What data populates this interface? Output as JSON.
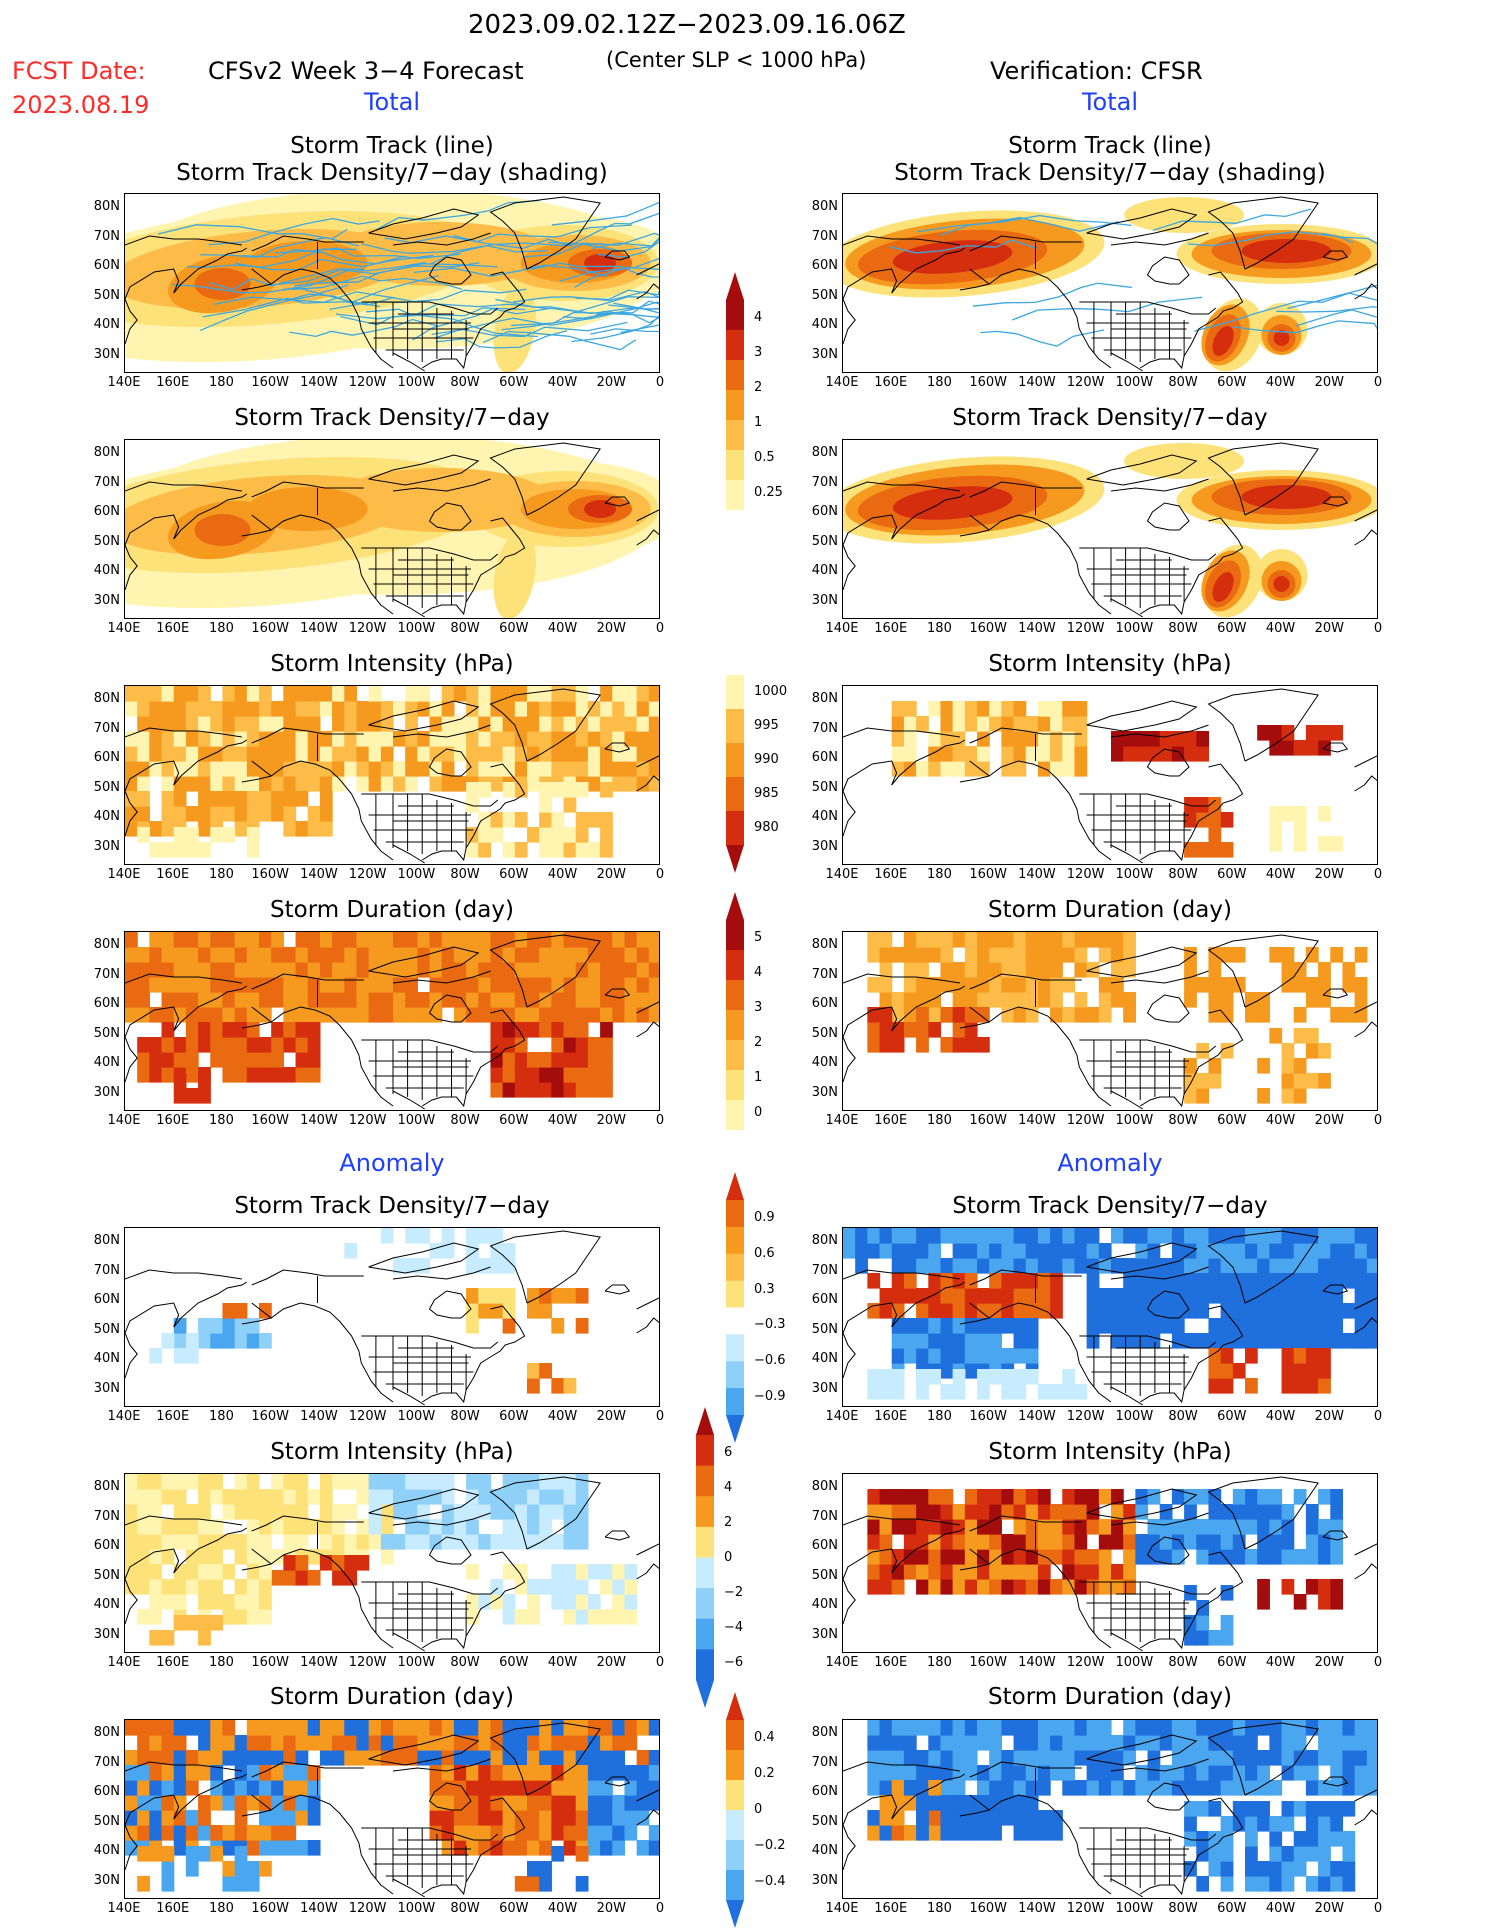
{
  "header": {
    "period": "2023.09.02.12Z−2023.09.16.06Z",
    "fcst_label": "FCST Date:",
    "fcst_date": "2023.08.19",
    "model_title": "CFSv2 Week 3−4 Forecast",
    "criterion": "(Center SLP < 1000 hPa)",
    "verification": "Verification: CFSR",
    "total_left": "Total",
    "total_right": "Total",
    "anomaly_left": "Anomaly",
    "anomaly_right": "Anomaly"
  },
  "axes": {
    "lat_labels": [
      "80N",
      "70N",
      "60N",
      "50N",
      "40N",
      "30N"
    ],
    "lon_labels": [
      "140E",
      "160E",
      "180",
      "160W",
      "140W",
      "120W",
      "100W",
      "80W",
      "60W",
      "40W",
      "20W",
      "0"
    ]
  },
  "panel_titles": {
    "track_line": "Storm Track (line)",
    "track_density_shading": "Storm Track Density/7−day (shading)",
    "track_density": "Storm Track Density/7−day",
    "intensity": "Storm Intensity (hPa)",
    "duration": "Storm Duration (day)"
  },
  "colorbars": {
    "density_total": [
      "4",
      "3",
      "2",
      "1",
      "0.5",
      "0.25"
    ],
    "intensity_total": [
      "1000",
      "995",
      "990",
      "985",
      "980"
    ],
    "duration_total": [
      "5",
      "4",
      "3",
      "2",
      "1",
      "0"
    ],
    "density_anom": [
      "0.9",
      "0.6",
      "0.3",
      "−0.3",
      "−0.6",
      "−0.9"
    ],
    "intensity_anom": [
      "6",
      "4",
      "2",
      "0",
      "−2",
      "−4",
      "−6"
    ],
    "duration_anom": [
      "0.4",
      "0.2",
      "0",
      "−0.2",
      "−0.4"
    ]
  },
  "colors": {
    "warm": [
      "#fff5b0",
      "#fde27a",
      "#fdbc47",
      "#f59a1e",
      "#ea6a12",
      "#d52e0f",
      "#a50d0d"
    ],
    "cool": [
      "#c8ecff",
      "#8fd0f9",
      "#4aa6ef",
      "#1f6fdc"
    ],
    "track_line": "#3da7e0"
  }
}
